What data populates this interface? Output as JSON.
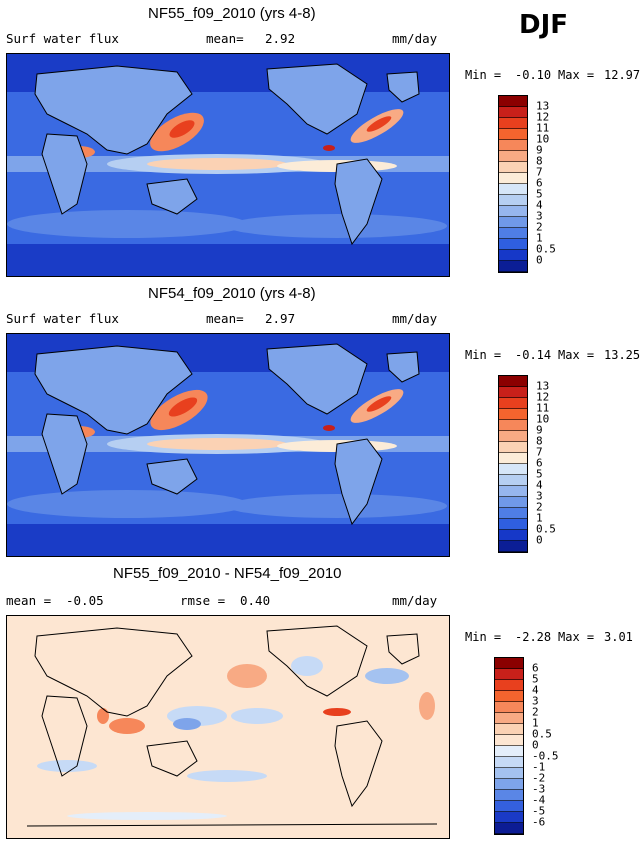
{
  "season": "DJF",
  "panels": [
    {
      "title": "NF55_f09_2010 (yrs 4-8)",
      "variable": "Surf water flux",
      "mean_label": "mean=",
      "mean_value": "2.92",
      "units": "mm/day",
      "min_label": "Min =",
      "min_value": "-0.10",
      "max_label": "Max =",
      "max_value": "12.97",
      "colorbar": {
        "labels": [
          "13",
          "12",
          "11",
          "10",
          "9",
          "8",
          "7",
          "6",
          "5",
          "4",
          "3",
          "2",
          "1",
          "0.5",
          "0"
        ],
        "colors": [
          "#8b0000",
          "#c8201a",
          "#e8401e",
          "#f4642e",
          "#f6875a",
          "#f8aa84",
          "#fbd2b4",
          "#fcecd8",
          "#d6e6f8",
          "#b6cff2",
          "#96b6ee",
          "#7099e8",
          "#4f7ee6",
          "#2f5fe0",
          "#1638c8",
          "#0b1e96"
        ]
      }
    },
    {
      "title": "NF54_f09_2010 (yrs 4-8)",
      "variable": "Surf water flux",
      "mean_label": "mean=",
      "mean_value": "2.97",
      "units": "mm/day",
      "min_label": "Min =",
      "min_value": "-0.14",
      "max_label": "Max =",
      "max_value": "13.25",
      "colorbar": {
        "labels": [
          "13",
          "12",
          "11",
          "10",
          "9",
          "8",
          "7",
          "6",
          "5",
          "4",
          "3",
          "2",
          "1",
          "0.5",
          "0"
        ],
        "colors": [
          "#8b0000",
          "#c8201a",
          "#e8401e",
          "#f4642e",
          "#f6875a",
          "#f8aa84",
          "#fbd2b4",
          "#fcecd8",
          "#d6e6f8",
          "#b6cff2",
          "#96b6ee",
          "#7099e8",
          "#4f7ee6",
          "#2f5fe0",
          "#1638c8",
          "#0b1e96"
        ]
      }
    },
    {
      "title": "NF55_f09_2010 - NF54_f09_2010",
      "mean_label": "mean =",
      "mean_value": "-0.05",
      "rmse_label": "rmse =",
      "rmse_value": "0.40",
      "units": "mm/day",
      "min_label": "Min =",
      "min_value": "-2.28",
      "max_label": "Max =",
      "max_value": "3.01",
      "colorbar": {
        "labels": [
          "6",
          "5",
          "4",
          "3",
          "2",
          "1",
          "0.5",
          "0",
          "-0.5",
          "-1",
          "-2",
          "-3",
          "-4",
          "-5",
          "-6"
        ],
        "colors": [
          "#8b0000",
          "#c8201a",
          "#e8401e",
          "#f4642e",
          "#f6875a",
          "#f8aa84",
          "#fbd2b4",
          "#fde6d2",
          "#e4eefa",
          "#c6daf6",
          "#a4c2f0",
          "#7ea4ea",
          "#5a86e6",
          "#3460de",
          "#1a3ac6",
          "#0c1c94"
        ]
      }
    }
  ]
}
